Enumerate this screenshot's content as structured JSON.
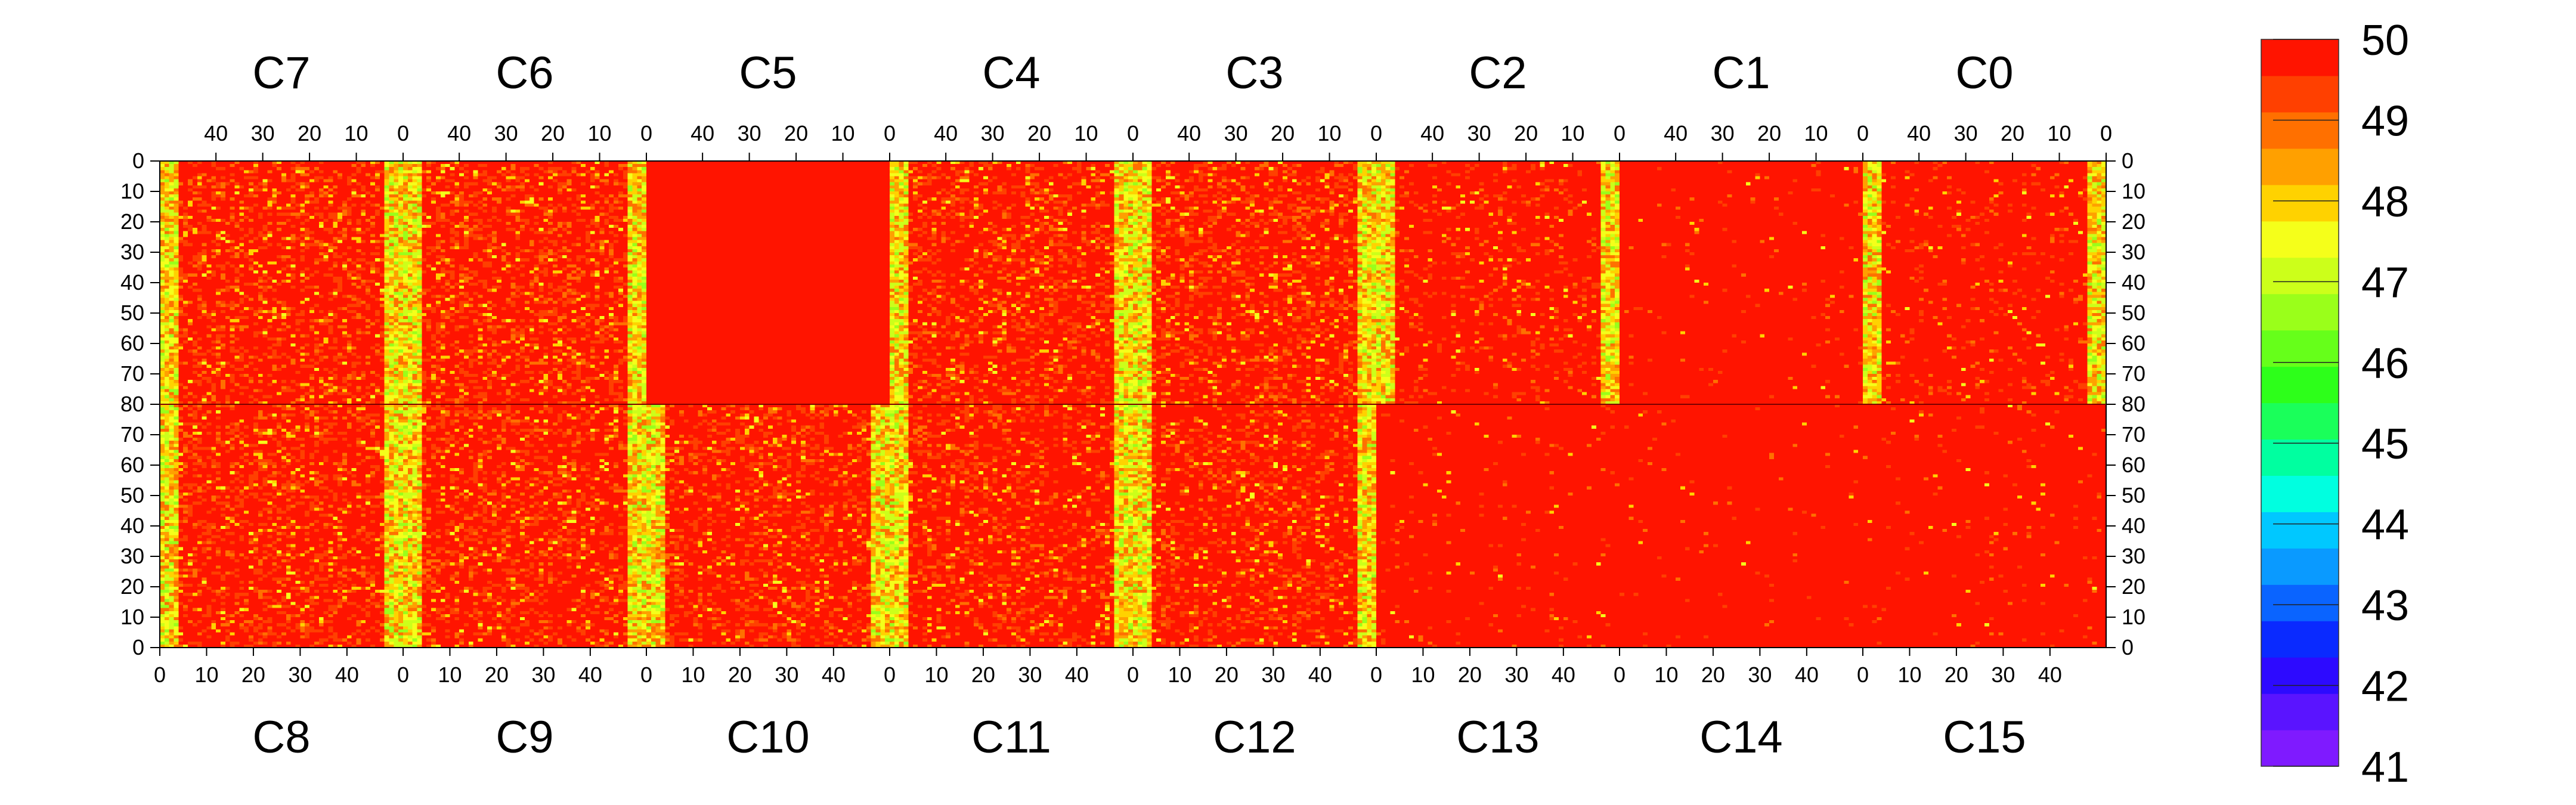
{
  "chart_data": {
    "type": "heatmap",
    "title": "",
    "top_row_chips": [
      "C7",
      "C6",
      "C5",
      "C4",
      "C3",
      "C2",
      "C1",
      "C0"
    ],
    "bottom_row_chips": [
      "C8",
      "C9",
      "C10",
      "C11",
      "C12",
      "C13",
      "C14",
      "C15"
    ],
    "columns_per_chip": 52,
    "rows_per_chip": 80,
    "top_x_ticks": [
      40,
      30,
      20,
      10,
      0
    ],
    "bottom_x_ticks": [
      0,
      10,
      20,
      30,
      40
    ],
    "y_ticks_top_half": [
      0,
      10,
      20,
      30,
      40,
      50,
      60,
      70,
      80
    ],
    "y_ticks_bottom_half": [
      70,
      60,
      50,
      40,
      30,
      20,
      10,
      0
    ],
    "zlim": [
      41,
      50
    ],
    "colorbar_ticks": [
      50,
      49,
      48,
      47,
      46,
      45,
      44,
      43,
      42,
      41
    ],
    "colorbar_levels": 20,
    "palette": [
      "#7f1aff",
      "#5a14ff",
      "#2d0aff",
      "#0a2aff",
      "#0a64ff",
      "#0a9aff",
      "#00c8ff",
      "#00ffe0",
      "#00ffa0",
      "#1aff5a",
      "#2dff1a",
      "#66ff1a",
      "#9aff1a",
      "#ccff1a",
      "#f5ff1a",
      "#ffd200",
      "#ffa000",
      "#ff7000",
      "#ff4000",
      "#ff1400"
    ],
    "chip_summary": [
      {
        "chip": "C7",
        "mean": 49.2,
        "fraction_below_50": 0.3
      },
      {
        "chip": "C6",
        "mean": 49.1,
        "fraction_below_50": 0.33
      },
      {
        "chip": "C5",
        "mean": 50.0,
        "fraction_below_50": 0.0
      },
      {
        "chip": "C4",
        "mean": 49.2,
        "fraction_below_50": 0.3
      },
      {
        "chip": "C3",
        "mean": 49.2,
        "fraction_below_50": 0.3
      },
      {
        "chip": "C2",
        "mean": 49.6,
        "fraction_below_50": 0.14
      },
      {
        "chip": "C1",
        "mean": 49.9,
        "fraction_below_50": 0.03
      },
      {
        "chip": "C0",
        "mean": 49.7,
        "fraction_below_50": 0.1
      },
      {
        "chip": "C8",
        "mean": 49.2,
        "fraction_below_50": 0.31
      },
      {
        "chip": "C9",
        "mean": 49.2,
        "fraction_below_50": 0.3
      },
      {
        "chip": "C10",
        "mean": 49.2,
        "fraction_below_50": 0.28
      },
      {
        "chip": "C11",
        "mean": 49.3,
        "fraction_below_50": 0.26
      },
      {
        "chip": "C12",
        "mean": 49.3,
        "fraction_below_50": 0.25
      },
      {
        "chip": "C13",
        "mean": 49.9,
        "fraction_below_50": 0.03
      },
      {
        "chip": "C14",
        "mean": 49.9,
        "fraction_below_50": 0.02
      },
      {
        "chip": "C15",
        "mean": 49.9,
        "fraction_below_50": 0.03
      }
    ],
    "edge_columns_value": 47.8,
    "grid": false,
    "legend": "colorbar right"
  }
}
